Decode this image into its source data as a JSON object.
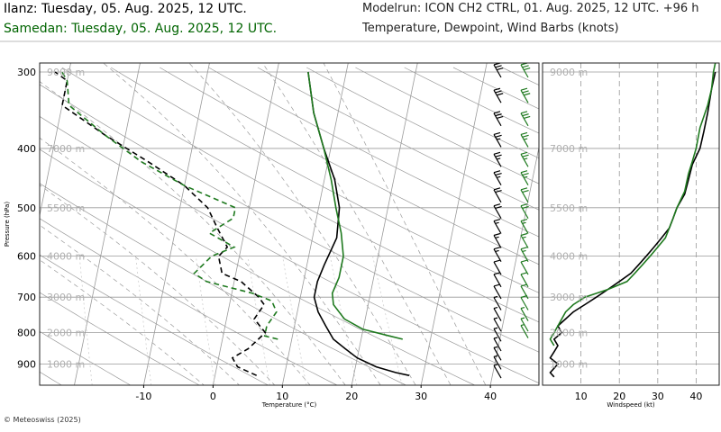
{
  "header": {
    "station1": "Ilanz: Tuesday, 05. Aug. 2025, 12 UTC.",
    "station2": "Samedan: Tuesday, 05. Aug. 2025, 12 UTC.",
    "modelrun": "Modelrun: ICON CH2 CTRL, 01. Aug. 2025, 12 UTC. +96 h",
    "variables": "Temperature, Dewpoint, Wind Barbs (knots)"
  },
  "footer": {
    "copyright": "© Meteoswiss (2025)"
  },
  "colors": {
    "station1": "#000000",
    "station2": "#1f7a1f",
    "grid": "#9a9a9a",
    "grid_light": "#c8c8c8"
  },
  "chart_data": [
    {
      "type": "line",
      "subtype": "skew-T log-p diagram",
      "title": "",
      "xlabel": "Temperature (°C)",
      "ylabel": "Pressure (hPa)",
      "pressure_ticks": [
        300,
        400,
        500,
        600,
        700,
        800,
        900
      ],
      "pressure_range": [
        290,
        975
      ],
      "temperature_ticks": [
        -10,
        0,
        10,
        20,
        30,
        40
      ],
      "temperature_range": [
        -25,
        47
      ],
      "height_labels": [
        {
          "p": 300,
          "label": "9000 m"
        },
        {
          "p": 400,
          "label": "7000 m"
        },
        {
          "p": 500,
          "label": "5500 m"
        },
        {
          "p": 600,
          "label": "4000 m"
        },
        {
          "p": 700,
          "label": "3000 m"
        },
        {
          "p": 800,
          "label": "2000 m"
        },
        {
          "p": 900,
          "label": "1000 m"
        }
      ],
      "series": [
        {
          "name": "Ilanz",
          "temperature": [
            [
              940,
              28
            ],
            [
              930,
              26
            ],
            [
              910,
              23
            ],
            [
              880,
              20
            ],
            [
              850,
              18
            ],
            [
              820,
              16
            ],
            [
              780,
              14.5
            ],
            [
              740,
              13
            ],
            [
              700,
              12
            ],
            [
              660,
              12
            ],
            [
              620,
              12.5
            ],
            [
              560,
              13.5
            ],
            [
              500,
              13
            ],
            [
              450,
              11.5
            ],
            [
              400,
              9
            ],
            [
              350,
              6.5
            ],
            [
              300,
              4.5
            ]
          ],
          "dewpoint": [
            [
              940,
              6
            ],
            [
              930,
              5
            ],
            [
              910,
              3
            ],
            [
              880,
              2
            ],
            [
              850,
              4
            ],
            [
              800,
              6
            ],
            [
              760,
              4
            ],
            [
              720,
              5
            ],
            [
              700,
              4
            ],
            [
              660,
              1
            ],
            [
              640,
              -2
            ],
            [
              600,
              -3
            ],
            [
              580,
              -2
            ],
            [
              540,
              -4
            ],
            [
              500,
              -6
            ],
            [
              460,
              -10
            ],
            [
              420,
              -16
            ],
            [
              380,
              -23
            ],
            [
              340,
              -30
            ],
            [
              310,
              -30
            ],
            [
              300,
              -32
            ]
          ]
        },
        {
          "name": "Samedan",
          "temperature": [
            [
              820,
              26
            ],
            [
              810,
              24
            ],
            [
              790,
              20
            ],
            [
              760,
              17
            ],
            [
              720,
              15
            ],
            [
              690,
              14.5
            ],
            [
              650,
              15
            ],
            [
              600,
              15
            ],
            [
              550,
              14
            ],
            [
              500,
              12.5
            ],
            [
              450,
              11
            ],
            [
              400,
              9
            ],
            [
              350,
              6.5
            ],
            [
              300,
              4.5
            ]
          ],
          "dewpoint": [
            [
              820,
              8
            ],
            [
              810,
              6
            ],
            [
              780,
              6
            ],
            [
              740,
              7
            ],
            [
              710,
              6
            ],
            [
              690,
              3
            ],
            [
              660,
              -4
            ],
            [
              640,
              -6
            ],
            [
              620,
              -5
            ],
            [
              600,
              -4
            ],
            [
              580,
              -1
            ],
            [
              550,
              -5
            ],
            [
              520,
              -2
            ],
            [
              500,
              -2
            ],
            [
              460,
              -10
            ],
            [
              420,
              -17
            ],
            [
              380,
              -23
            ],
            [
              340,
              -29
            ],
            [
              310,
              -30
            ],
            [
              300,
              -31
            ]
          ]
        }
      ],
      "wind_barbs": [
        {
          "name": "Ilanz",
          "levels": [
            930,
            900,
            870,
            840,
            810,
            780,
            750,
            720,
            690,
            660,
            630,
            600,
            570,
            540,
            510,
            480,
            450,
            420,
            390,
            360,
            330,
            300
          ],
          "speed_kt": [
            5,
            5,
            5,
            5,
            5,
            5,
            5,
            5,
            10,
            10,
            10,
            15,
            15,
            15,
            20,
            20,
            25,
            25,
            25,
            30,
            30,
            30
          ]
        },
        {
          "name": "Samedan",
          "levels": [
            800,
            780,
            750,
            720,
            690,
            660,
            630,
            600,
            570,
            540,
            510,
            480,
            450,
            420,
            390,
            360,
            330,
            300
          ],
          "speed_kt": [
            5,
            5,
            5,
            10,
            10,
            10,
            10,
            15,
            15,
            15,
            20,
            20,
            25,
            25,
            25,
            30,
            30,
            30
          ]
        }
      ]
    },
    {
      "type": "line",
      "subtype": "wind speed profile",
      "xlabel": "Windspeed (kt)",
      "x_ticks": [
        10,
        20,
        30,
        40
      ],
      "x_range": [
        0,
        46
      ],
      "series": [
        {
          "name": "Ilanz",
          "profile": [
            [
              945,
              3
            ],
            [
              930,
              2
            ],
            [
              915,
              3
            ],
            [
              900,
              4
            ],
            [
              880,
              2
            ],
            [
              860,
              3
            ],
            [
              840,
              4
            ],
            [
              820,
              3
            ],
            [
              800,
              5
            ],
            [
              780,
              4
            ],
            [
              760,
              6
            ],
            [
              740,
              8
            ],
            [
              720,
              11
            ],
            [
              700,
              14
            ],
            [
              680,
              17
            ],
            [
              660,
              20
            ],
            [
              640,
              23
            ],
            [
              620,
              25
            ],
            [
              600,
              27
            ],
            [
              580,
              29
            ],
            [
              560,
              31
            ],
            [
              540,
              33
            ],
            [
              520,
              34
            ],
            [
              500,
              35
            ],
            [
              475,
              37
            ],
            [
              450,
              38
            ],
            [
              425,
              39
            ],
            [
              400,
              41
            ],
            [
              375,
              42
            ],
            [
              350,
              43
            ],
            [
              320,
              44
            ],
            [
              300,
              45
            ]
          ]
        },
        {
          "name": "Samedan",
          "profile": [
            [
              840,
              3
            ],
            [
              820,
              2
            ],
            [
              800,
              3
            ],
            [
              780,
              4
            ],
            [
              760,
              5
            ],
            [
              740,
              6
            ],
            [
              720,
              8
            ],
            [
              700,
              11
            ],
            [
              680,
              17
            ],
            [
              660,
              22
            ],
            [
              640,
              24
            ],
            [
              620,
              26
            ],
            [
              600,
              28
            ],
            [
              580,
              30
            ],
            [
              560,
              32
            ],
            [
              540,
              33
            ],
            [
              520,
              34
            ],
            [
              500,
              35
            ],
            [
              470,
              37
            ],
            [
              440,
              38
            ],
            [
              420,
              39
            ],
            [
              400,
              40
            ],
            [
              370,
              41
            ],
            [
              340,
              43
            ],
            [
              320,
              44
            ],
            [
              300,
              44.5
            ],
            [
              290,
              45
            ]
          ]
        }
      ]
    }
  ]
}
